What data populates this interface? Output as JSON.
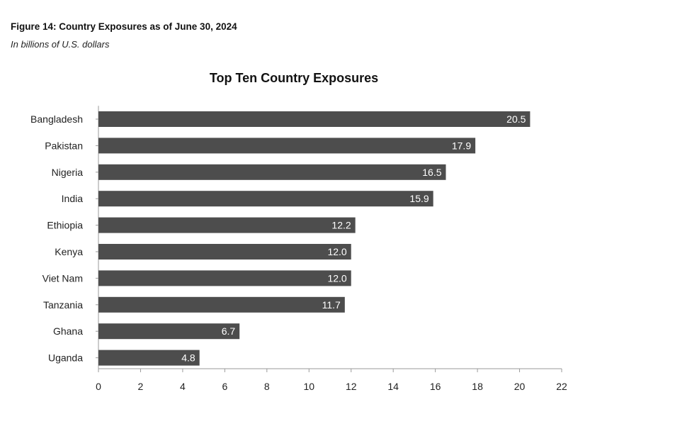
{
  "figure": {
    "caption": "Figure 14: Country Exposures as of June 30, 2024",
    "subcaption": "In billions of U.S. dollars"
  },
  "chart_data": {
    "type": "bar",
    "orientation": "horizontal",
    "title": "Top Ten Country Exposures",
    "categories": [
      "Bangladesh",
      "Pakistan",
      "Nigeria",
      "India",
      "Ethiopia",
      "Kenya",
      "Viet Nam",
      "Tanzania",
      "Ghana",
      "Uganda"
    ],
    "values": [
      20.5,
      17.9,
      16.5,
      15.9,
      12.2,
      12.0,
      12.0,
      11.7,
      6.7,
      4.8
    ],
    "value_labels": [
      "20.5",
      "17.9",
      "16.5",
      "15.9",
      "12.2",
      "12.0",
      "12.0",
      "11.7",
      "6.7",
      "4.8"
    ],
    "xlabel": "",
    "ylabel": "",
    "xlim": [
      0,
      22
    ],
    "xticks": [
      0,
      2,
      4,
      6,
      8,
      10,
      12,
      14,
      16,
      18,
      20,
      22
    ],
    "grid": false,
    "legend": "none",
    "bar_color": "#4d4d4d",
    "label_color": "#ffffff"
  }
}
